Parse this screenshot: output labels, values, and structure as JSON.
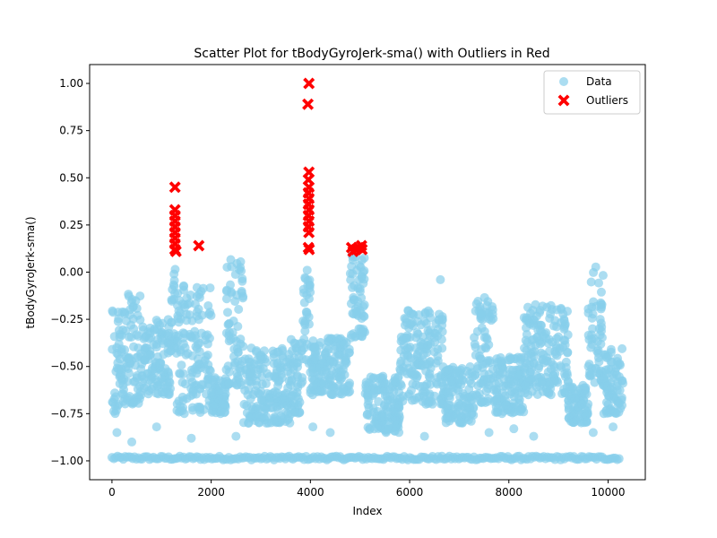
{
  "chart_data": {
    "type": "scatter",
    "title": "Scatter Plot for tBodyGyroJerk-sma() with Outliers in Red",
    "xlabel": "Index",
    "ylabel": "tBodyGyroJerk-sma()",
    "xlim": [
      -450,
      10750
    ],
    "ylim": [
      -1.1,
      1.1
    ],
    "xticks": [
      0,
      2000,
      4000,
      6000,
      8000,
      10000
    ],
    "xtick_labels": [
      "0",
      "2000",
      "4000",
      "6000",
      "8000",
      "10000"
    ],
    "yticks": [
      -1.0,
      -0.75,
      -0.5,
      -0.25,
      0.0,
      0.25,
      0.5,
      0.75,
      1.0
    ],
    "ytick_labels": [
      "−1.00",
      "−0.75",
      "−0.50",
      "−0.25",
      "0.00",
      "0.25",
      "0.50",
      "0.75",
      "1.00"
    ],
    "grid": false,
    "legend_position": "top-right",
    "series": [
      {
        "name": "Data",
        "color": "#87CEEB",
        "marker": "circle",
        "baseline_band": {
          "y": -0.985,
          "spread": 0.02
        },
        "activity_clusters": [
          {
            "x_range": [
              0,
              200
            ],
            "y_range": [
              -0.75,
              -0.2
            ]
          },
          {
            "x_range": [
              200,
              600
            ],
            "y_range": [
              -0.7,
              -0.1
            ]
          },
          {
            "x_range": [
              600,
              1200
            ],
            "y_range": [
              -0.65,
              -0.25
            ]
          },
          {
            "x_range": [
              1200,
              1300
            ],
            "y_range": [
              -0.4,
              0.08
            ]
          },
          {
            "x_range": [
              1300,
              2000
            ],
            "y_range": [
              -0.75,
              -0.05
            ]
          },
          {
            "x_range": [
              2000,
              2300
            ],
            "y_range": [
              -0.75,
              -0.55
            ]
          },
          {
            "x_range": [
              2300,
              2650
            ],
            "y_range": [
              -0.6,
              0.07
            ]
          },
          {
            "x_range": [
              2650,
              3600
            ],
            "y_range": [
              -0.8,
              -0.4
            ]
          },
          {
            "x_range": [
              3600,
              3850
            ],
            "y_range": [
              -0.75,
              -0.35
            ]
          },
          {
            "x_range": [
              3850,
              4000
            ],
            "y_range": [
              -0.5,
              0.05
            ]
          },
          {
            "x_range": [
              4000,
              4800
            ],
            "y_range": [
              -0.65,
              -0.35
            ]
          },
          {
            "x_range": [
              4800,
              5100
            ],
            "y_range": [
              -0.35,
              0.1
            ]
          },
          {
            "x_range": [
              5100,
              5800
            ],
            "y_range": [
              -0.85,
              -0.55
            ]
          },
          {
            "x_range": [
              5800,
              6700
            ],
            "y_range": [
              -0.7,
              -0.2
            ]
          },
          {
            "x_range": [
              6700,
              7300
            ],
            "y_range": [
              -0.8,
              -0.5
            ]
          },
          {
            "x_range": [
              7300,
              7700
            ],
            "y_range": [
              -0.7,
              -0.13
            ]
          },
          {
            "x_range": [
              7700,
              8300
            ],
            "y_range": [
              -0.75,
              -0.45
            ]
          },
          {
            "x_range": [
              8300,
              9200
            ],
            "y_range": [
              -0.65,
              -0.17
            ]
          },
          {
            "x_range": [
              9200,
              9600
            ],
            "y_range": [
              -0.8,
              -0.6
            ]
          },
          {
            "x_range": [
              9600,
              9900
            ],
            "y_range": [
              -0.6,
              0.03
            ]
          },
          {
            "x_range": [
              9900,
              10300
            ],
            "y_range": [
              -0.75,
              -0.4
            ]
          }
        ],
        "sparse_points": [
          {
            "x": 100,
            "y": -0.85
          },
          {
            "x": 400,
            "y": -0.9
          },
          {
            "x": 900,
            "y": -0.82
          },
          {
            "x": 1600,
            "y": -0.88
          },
          {
            "x": 2500,
            "y": -0.87
          },
          {
            "x": 4050,
            "y": -0.82
          },
          {
            "x": 4400,
            "y": -0.85
          },
          {
            "x": 6300,
            "y": -0.87
          },
          {
            "x": 7600,
            "y": -0.85
          },
          {
            "x": 8100,
            "y": -0.83
          },
          {
            "x": 8500,
            "y": -0.87
          },
          {
            "x": 9700,
            "y": -0.85
          },
          {
            "x": 10100,
            "y": -0.82
          },
          {
            "x": 6620,
            "y": -0.04
          }
        ]
      },
      {
        "name": "Outliers",
        "color": "#FF0000",
        "marker": "X",
        "points": [
          {
            "x": 1270,
            "y": 0.45
          },
          {
            "x": 1270,
            "y": 0.33
          },
          {
            "x": 1270,
            "y": 0.3
          },
          {
            "x": 1270,
            "y": 0.27
          },
          {
            "x": 1270,
            "y": 0.24
          },
          {
            "x": 1270,
            "y": 0.21
          },
          {
            "x": 1270,
            "y": 0.18
          },
          {
            "x": 1270,
            "y": 0.15
          },
          {
            "x": 1270,
            "y": 0.12
          },
          {
            "x": 1290,
            "y": 0.11
          },
          {
            "x": 1750,
            "y": 0.14
          },
          {
            "x": 3970,
            "y": 1.0
          },
          {
            "x": 3950,
            "y": 0.89
          },
          {
            "x": 3970,
            "y": 0.53
          },
          {
            "x": 3960,
            "y": 0.49
          },
          {
            "x": 3970,
            "y": 0.45
          },
          {
            "x": 3960,
            "y": 0.42
          },
          {
            "x": 3970,
            "y": 0.39
          },
          {
            "x": 3960,
            "y": 0.36
          },
          {
            "x": 3970,
            "y": 0.33
          },
          {
            "x": 3960,
            "y": 0.3
          },
          {
            "x": 3970,
            "y": 0.27
          },
          {
            "x": 3960,
            "y": 0.24
          },
          {
            "x": 3970,
            "y": 0.21
          },
          {
            "x": 3960,
            "y": 0.13
          },
          {
            "x": 3975,
            "y": 0.12
          },
          {
            "x": 4830,
            "y": 0.13
          },
          {
            "x": 4860,
            "y": 0.11
          },
          {
            "x": 4920,
            "y": 0.12
          },
          {
            "x": 4970,
            "y": 0.13
          },
          {
            "x": 5030,
            "y": 0.14
          },
          {
            "x": 5040,
            "y": 0.12
          }
        ]
      }
    ]
  }
}
